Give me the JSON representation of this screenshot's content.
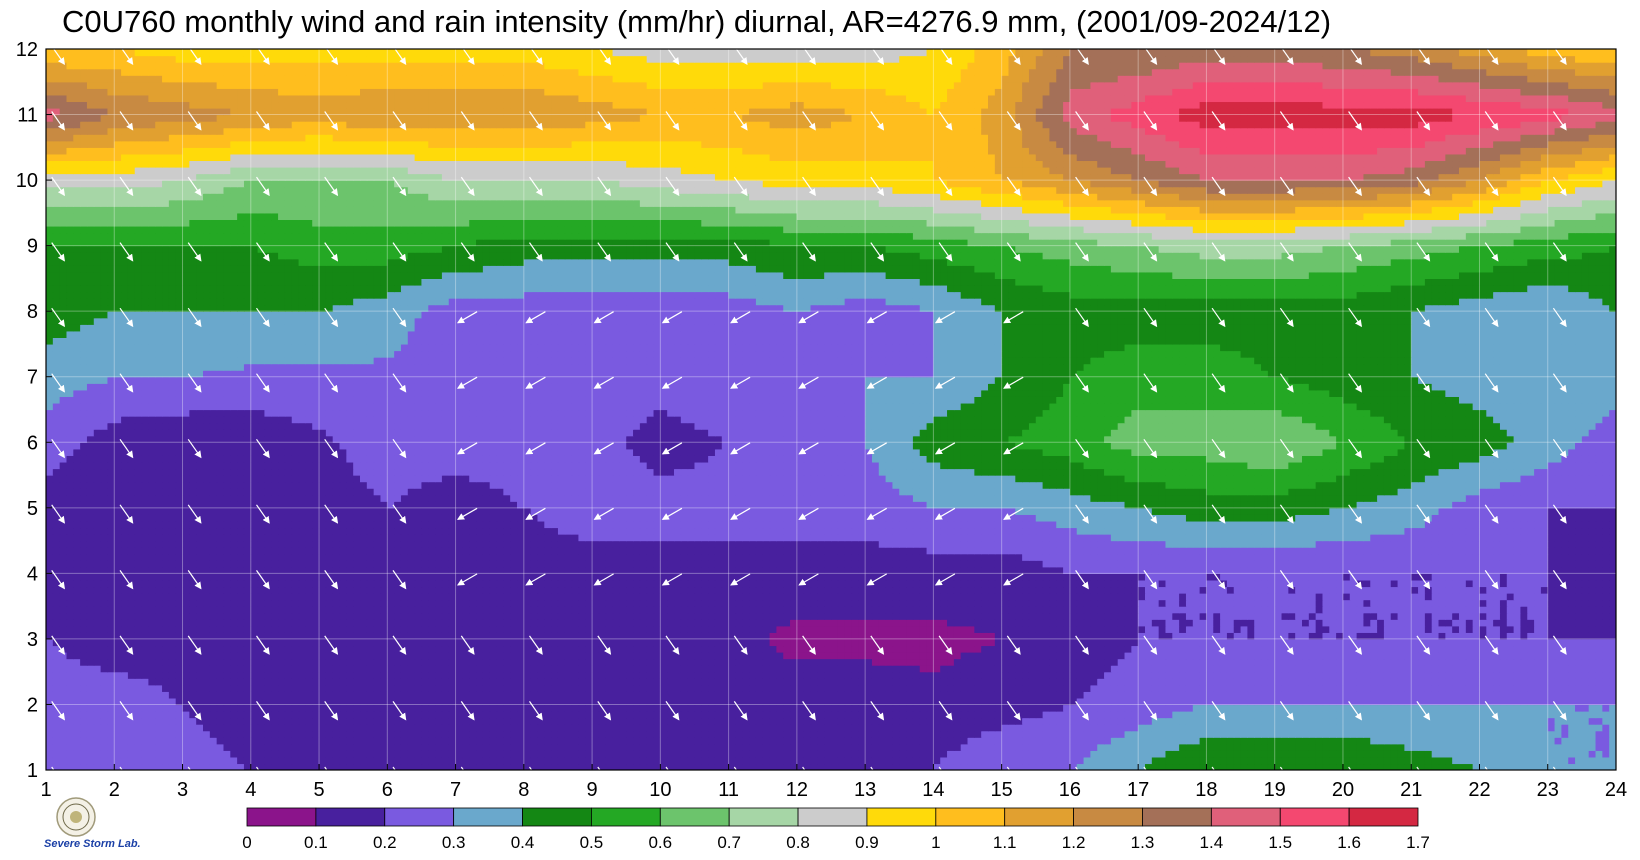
{
  "title": "C0U760 monthly wind and rain intensity (mm/hr) diurnal, AR=4276.9 mm, (2001/09-2024/12)",
  "logo": {
    "icon": "severe-storm-lab-seal-icon",
    "text": "Severe Storm Lab."
  },
  "chart_data": {
    "type": "heatmap",
    "subtype": "filled-contour-with-wind-vectors",
    "title": "C0U760 monthly wind and rain intensity (mm/hr) diurnal, AR=4276.9 mm, (2001/09-2024/12)",
    "xlabel": "",
    "ylabel": "",
    "x_ticks": [
      1,
      2,
      3,
      4,
      5,
      6,
      7,
      8,
      9,
      10,
      11,
      12,
      13,
      14,
      15,
      16,
      17,
      18,
      19,
      20,
      21,
      22,
      23,
      24
    ],
    "y_ticks": [
      1,
      2,
      3,
      4,
      5,
      6,
      7,
      8,
      9,
      10,
      11,
      12
    ],
    "xlim": [
      1,
      24
    ],
    "ylim": [
      1,
      12
    ],
    "grid": true,
    "levels": [
      0,
      0.1,
      0.2,
      0.3,
      0.4,
      0.5,
      0.6,
      0.7,
      0.8,
      0.9,
      1,
      1.1,
      1.2,
      1.3,
      1.4,
      1.5,
      1.6,
      1.7
    ],
    "colorbar_labels": [
      "0",
      "0.1",
      "0.2",
      "0.3",
      "0.4",
      "0.5",
      "0.6",
      "0.7",
      "0.8",
      "0.9",
      "1",
      "1.1",
      "1.2",
      "1.3",
      "1.4",
      "1.5",
      "1.6",
      "1.7"
    ],
    "colors": [
      "#8b148b",
      "#48209e",
      "#7a5ae0",
      "#6aa8cc",
      "#148714",
      "#24a824",
      "#6cc46c",
      "#a6d6a6",
      "#cccccc",
      "#ffda0a",
      "#ffbe1e",
      "#e1a030",
      "#c88a42",
      "#a47058",
      "#e0607a",
      "#f44870",
      "#d42842"
    ],
    "colorbar_position": "bottom",
    "vector_color": "#ffffff",
    "contour_line_color": "#e8a020",
    "values": [
      [
        0.3,
        0.3,
        0.25,
        0.2,
        0.2,
        0.2,
        0.18,
        0.15,
        0.15,
        0.15,
        0.2,
        0.18,
        0.2,
        0.2,
        0.3,
        0.3,
        0.4,
        0.5,
        0.5,
        0.5,
        0.45,
        0.4,
        0.3,
        0.3
      ],
      [
        0.25,
        0.25,
        0.2,
        0.15,
        0.15,
        0.2,
        0.18,
        0.15,
        0.12,
        0.12,
        0.14,
        0.14,
        0.14,
        0.12,
        0.15,
        0.2,
        0.25,
        0.3,
        0.3,
        0.3,
        0.3,
        0.3,
        0.3,
        0.3
      ],
      [
        0.2,
        0.15,
        0.15,
        0.15,
        0.15,
        0.14,
        0.12,
        0.12,
        0.12,
        0.12,
        0.12,
        0.08,
        0.08,
        0.08,
        0.1,
        0.15,
        0.2,
        0.2,
        0.2,
        0.2,
        0.2,
        0.2,
        0.2,
        0.2
      ],
      [
        0.15,
        0.15,
        0.15,
        0.15,
        0.15,
        0.15,
        0.15,
        0.15,
        0.15,
        0.15,
        0.15,
        0.15,
        0.15,
        0.15,
        0.15,
        0.2,
        0.2,
        0.2,
        0.2,
        0.2,
        0.2,
        0.2,
        0.2,
        0.15
      ],
      [
        0.15,
        0.15,
        0.15,
        0.15,
        0.15,
        0.2,
        0.15,
        0.2,
        0.25,
        0.25,
        0.25,
        0.25,
        0.25,
        0.3,
        0.3,
        0.35,
        0.4,
        0.45,
        0.45,
        0.4,
        0.35,
        0.25,
        0.2,
        0.2
      ],
      [
        0.25,
        0.15,
        0.12,
        0.12,
        0.18,
        0.25,
        0.25,
        0.25,
        0.25,
        0.15,
        0.2,
        0.25,
        0.3,
        0.45,
        0.5,
        0.55,
        0.65,
        0.65,
        0.7,
        0.6,
        0.5,
        0.45,
        0.35,
        0.25
      ],
      [
        0.35,
        0.3,
        0.3,
        0.28,
        0.28,
        0.28,
        0.25,
        0.25,
        0.25,
        0.25,
        0.3,
        0.3,
        0.3,
        0.3,
        0.4,
        0.5,
        0.55,
        0.55,
        0.5,
        0.45,
        0.4,
        0.35,
        0.35,
        0.35
      ],
      [
        0.45,
        0.4,
        0.4,
        0.4,
        0.4,
        0.35,
        0.25,
        0.25,
        0.25,
        0.25,
        0.25,
        0.3,
        0.25,
        0.3,
        0.4,
        0.45,
        0.45,
        0.45,
        0.45,
        0.45,
        0.4,
        0.35,
        0.3,
        0.4
      ],
      [
        0.5,
        0.5,
        0.5,
        0.5,
        0.55,
        0.55,
        0.5,
        0.45,
        0.45,
        0.45,
        0.45,
        0.5,
        0.5,
        0.55,
        0.6,
        0.65,
        0.7,
        0.75,
        0.75,
        0.7,
        0.65,
        0.6,
        0.55,
        0.5
      ],
      [
        0.85,
        0.85,
        0.8,
        0.7,
        0.7,
        0.7,
        0.8,
        0.8,
        0.8,
        0.85,
        0.9,
        0.95,
        0.95,
        1.0,
        1.1,
        1.2,
        1.3,
        1.4,
        1.4,
        1.4,
        1.35,
        1.2,
        1.0,
        0.9
      ],
      [
        1.45,
        1.3,
        1.25,
        1.2,
        1.15,
        1.2,
        1.2,
        1.2,
        1.15,
        1.1,
        1.1,
        1.15,
        1.1,
        1.0,
        1.15,
        1.45,
        1.55,
        1.65,
        1.65,
        1.65,
        1.65,
        1.6,
        1.55,
        1.45
      ],
      [
        1.0,
        1.0,
        0.95,
        0.95,
        0.95,
        0.95,
        0.95,
        0.95,
        0.9,
        0.85,
        0.85,
        0.85,
        0.85,
        0.9,
        1.05,
        1.3,
        1.3,
        1.35,
        1.35,
        1.3,
        1.25,
        1.15,
        1.05,
        1.0
      ]
    ],
    "wind_vector_directions_note": "arrows mostly point south-east in most months; north-west pointing in months 4-8 afternoon"
  }
}
